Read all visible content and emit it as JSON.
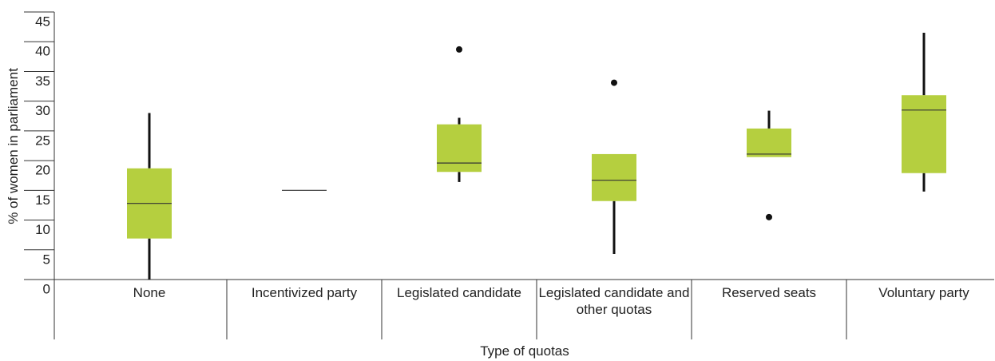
{
  "chart_data": {
    "type": "box",
    "xlabel": "Type of quotas",
    "ylabel": "% of women in parliament",
    "categories": [
      "None",
      "Incentivized party",
      "Legislated candidate",
      "Legislated candidate and other quotas",
      "Reserved seats",
      "Voluntary party"
    ],
    "boxes": [
      {
        "min": 0,
        "q1": 6.9,
        "median": 12.8,
        "q3": 18.7,
        "max": 28,
        "outliers": []
      },
      {
        "min": 15,
        "q1": 15,
        "median": 15,
        "q3": 15,
        "max": 15,
        "outliers": []
      },
      {
        "min": 16.4,
        "q1": 18.1,
        "median": 19.6,
        "q3": 26.1,
        "max": 27.2,
        "outliers": [
          38.7
        ]
      },
      {
        "min": 4.3,
        "q1": 13.2,
        "median": 16.7,
        "q3": 21.1,
        "max": 21.1,
        "outliers": [
          33.1
        ]
      },
      {
        "min": 20.6,
        "q1": 20.6,
        "median": 21.1,
        "q3": 25.4,
        "max": 28.4,
        "outliers": [
          10.5
        ]
      },
      {
        "min": 14.8,
        "q1": 17.9,
        "median": 28.5,
        "q3": 31.0,
        "max": 41.5,
        "outliers": []
      }
    ],
    "color": "#b5cf3f",
    "ylim": [
      0,
      45
    ],
    "yticks": [
      0,
      5,
      10,
      15,
      20,
      25,
      30,
      35,
      40,
      45
    ]
  }
}
